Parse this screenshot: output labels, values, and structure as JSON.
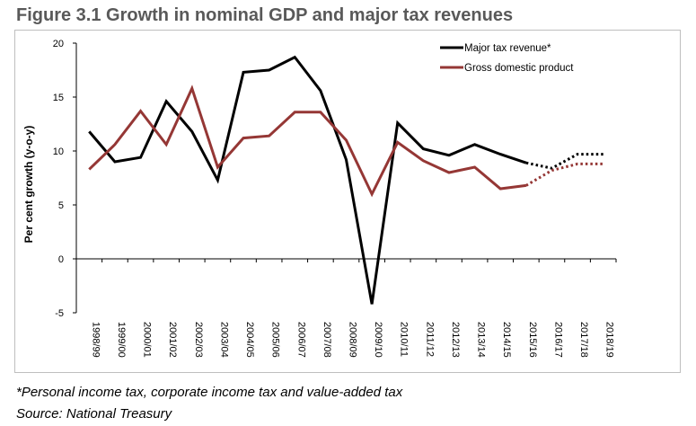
{
  "chart_data": {
    "type": "line",
    "title": "Figure 3.1 Growth in nominal GDP and major tax revenues",
    "ylabel": "Per cent growth (y-o-y)",
    "xlabel": "",
    "ylim": [
      -5,
      20
    ],
    "yticks": [
      -5,
      0,
      5,
      10,
      15,
      20
    ],
    "grid": false,
    "legend_position": "top-right",
    "categories": [
      "1998/99",
      "1999/00",
      "2000/01",
      "2001/02",
      "2002/03",
      "2003/04",
      "2004/05",
      "2005/06",
      "2006/07",
      "2007/08",
      "2008/09",
      "2009/10",
      "2010/11",
      "2011/12",
      "2012/13",
      "2013/14",
      "2014/15",
      "2015/16",
      "2016/17",
      "2017/18",
      "2018/19"
    ],
    "series": [
      {
        "name": "Major tax revenue*",
        "color": "#000000",
        "values": [
          11.8,
          9.0,
          9.4,
          14.6,
          11.8,
          7.3,
          17.3,
          17.5,
          18.7,
          15.6,
          9.2,
          -4.2,
          12.6,
          10.2,
          9.6,
          10.6,
          9.7,
          8.9,
          8.4,
          9.7,
          9.7
        ],
        "forecast_from_index": 17
      },
      {
        "name": "Gross domestic product",
        "color": "#953735",
        "values": [
          8.3,
          10.6,
          13.7,
          10.6,
          15.8,
          8.5,
          11.2,
          11.4,
          13.6,
          13.6,
          11.0,
          6.0,
          10.8,
          9.1,
          8.0,
          8.5,
          6.5,
          6.8,
          8.2,
          8.8,
          8.8
        ],
        "forecast_from_index": 17
      }
    ]
  },
  "notes": {
    "footnote": "*Personal income tax, corporate income tax and value-added tax",
    "source": "Source: National Treasury"
  }
}
